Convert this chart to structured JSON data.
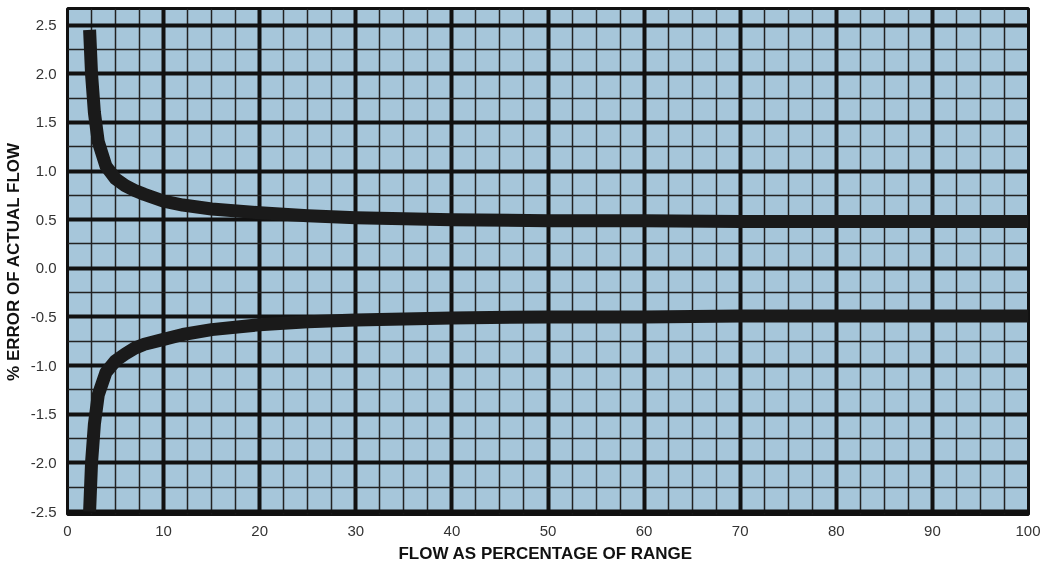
{
  "chart_data": {
    "type": "line",
    "xlabel": "FLOW  AS PERCENTAGE OF RANGE",
    "ylabel": "% ERROR OF ACTUAL FLOW",
    "xlim": [
      0,
      100
    ],
    "ylim": [
      -2.53,
      2.67
    ],
    "xticks": [
      0,
      10,
      20,
      30,
      40,
      50,
      60,
      70,
      80,
      90,
      100
    ],
    "yticks": [
      {
        "value": -2.5,
        "label": "-2.5"
      },
      {
        "value": -2,
        "label": "-2.0"
      },
      {
        "value": -1.5,
        "label": "-1.5"
      },
      {
        "value": -1,
        "label": "-1.0"
      },
      {
        "value": -0.5,
        "label": "-0.5"
      },
      {
        "value": 0,
        "label": "0.0"
      },
      {
        "value": 0.5,
        "label": "0.5"
      },
      {
        "value": 1,
        "label": "1.0"
      },
      {
        "value": 1.5,
        "label": "1.5"
      },
      {
        "value": 2,
        "label": "2.0"
      },
      {
        "value": 2.5,
        "label": "2.5"
      }
    ],
    "grid": true,
    "marker": "none",
    "line_style": "solid",
    "series": [
      {
        "color": "#1a1a1a",
        "x": [
          2.3,
          2.5,
          2.8,
          3.2,
          4,
          5,
          6,
          7,
          8,
          10,
          12,
          15,
          20,
          25,
          30,
          40,
          50,
          60,
          70,
          80,
          90,
          100
        ],
        "values": [
          2.45,
          2.0,
          1.6,
          1.3,
          1.05,
          0.92,
          0.85,
          0.8,
          0.76,
          0.69,
          0.65,
          0.61,
          0.57,
          0.54,
          0.52,
          0.5,
          0.49,
          0.49,
          0.48,
          0.48,
          0.48,
          0.48
        ]
      },
      {
        "color": "#1a1a1a",
        "x": [
          2.3,
          2.5,
          2.8,
          3.2,
          4,
          5,
          6,
          7,
          8,
          10,
          12,
          15,
          20,
          25,
          30,
          40,
          50,
          60,
          70,
          80,
          90,
          100
        ],
        "values": [
          -2.5,
          -2.0,
          -1.6,
          -1.3,
          -1.07,
          -0.95,
          -0.88,
          -0.82,
          -0.78,
          -0.73,
          -0.68,
          -0.63,
          -0.58,
          -0.55,
          -0.53,
          -0.51,
          -0.5,
          -0.5,
          -0.49,
          -0.49,
          -0.49,
          -0.49
        ]
      }
    ]
  }
}
